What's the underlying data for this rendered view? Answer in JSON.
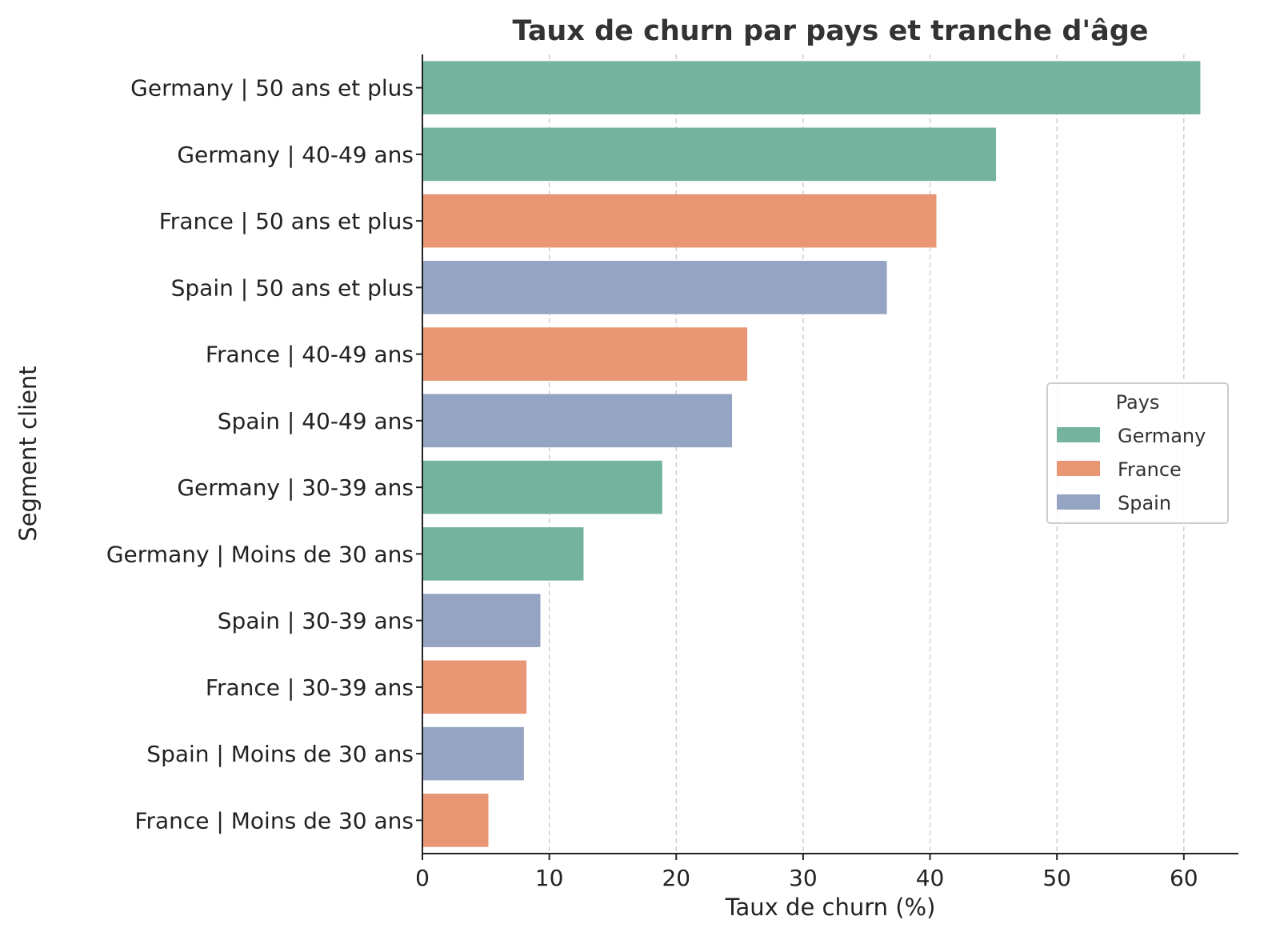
{
  "chart_data": {
    "type": "bar",
    "orientation": "horizontal",
    "title": "Taux de churn par pays et tranche d'âge",
    "xlabel": "Taux de churn (%)",
    "ylabel": "Segment client",
    "xlim": [
      0,
      64.3
    ],
    "xticks": [
      0,
      10,
      20,
      30,
      40,
      50,
      60
    ],
    "grid": "x-dashed",
    "legend": {
      "title": "Pays",
      "placement": "center-right",
      "entries": [
        {
          "name": "Germany",
          "color": "#74b49f"
        },
        {
          "name": "France",
          "color": "#e89673"
        },
        {
          "name": "Spain",
          "color": "#95a4c3"
        }
      ]
    },
    "bars": [
      {
        "label": "Germany | 50 ans et plus",
        "country": "Germany",
        "value": 61.3
      },
      {
        "label": "Germany | 40-49 ans",
        "country": "Germany",
        "value": 45.2
      },
      {
        "label": "France | 50 ans et plus",
        "country": "France",
        "value": 40.5
      },
      {
        "label": "Spain | 50 ans et plus",
        "country": "Spain",
        "value": 36.6
      },
      {
        "label": "France | 40-49 ans",
        "country": "France",
        "value": 25.6
      },
      {
        "label": "Spain | 40-49 ans",
        "country": "Spain",
        "value": 24.4
      },
      {
        "label": "Germany | 30-39 ans",
        "country": "Germany",
        "value": 18.9
      },
      {
        "label": "Germany | Moins de 30 ans",
        "country": "Germany",
        "value": 12.7
      },
      {
        "label": "Spain | 30-39 ans",
        "country": "Spain",
        "value": 9.3
      },
      {
        "label": "France | 30-39 ans",
        "country": "France",
        "value": 8.2
      },
      {
        "label": "Spain | Moins de 30 ans",
        "country": "Spain",
        "value": 8.0
      },
      {
        "label": "France | Moins de 30 ans",
        "country": "France",
        "value": 5.2
      }
    ]
  }
}
